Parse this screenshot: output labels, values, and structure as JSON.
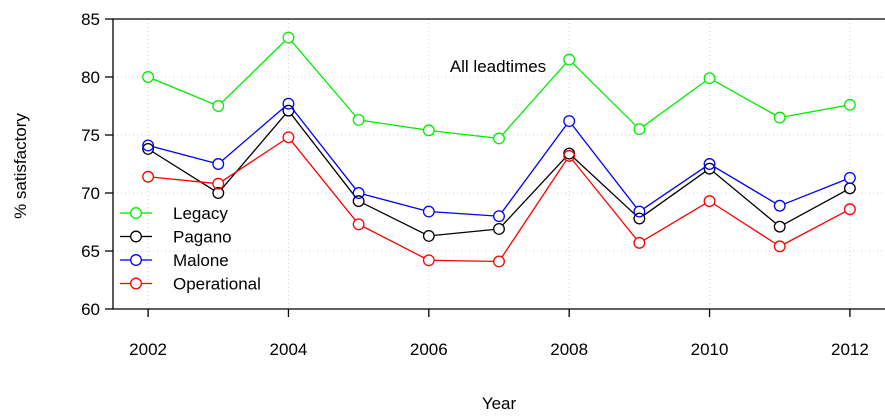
{
  "chart_data": {
    "type": "line",
    "annotation": "All leadtimes",
    "xlabel": "Year",
    "ylabel": "% satisfactory",
    "x": [
      2002,
      2003,
      2004,
      2005,
      2006,
      2007,
      2008,
      2009,
      2010,
      2011,
      2012
    ],
    "xlim": [
      2001.5,
      2012.5
    ],
    "ylim": [
      60,
      85
    ],
    "xticks": [
      2002,
      2004,
      2006,
      2008,
      2010,
      2012
    ],
    "yticks": [
      60,
      65,
      70,
      75,
      80,
      85
    ],
    "grid": true,
    "legend_position": "bottom-left",
    "series": [
      {
        "name": "Legacy",
        "color": "#00ee00",
        "values": [
          80.0,
          77.5,
          83.4,
          76.3,
          75.4,
          74.7,
          81.5,
          75.5,
          79.9,
          76.5,
          77.6
        ]
      },
      {
        "name": "Pagano",
        "color": "#000000",
        "values": [
          73.8,
          70.0,
          77.1,
          69.3,
          66.3,
          66.9,
          73.4,
          67.8,
          72.1,
          67.1,
          70.4
        ]
      },
      {
        "name": "Malone",
        "color": "#0000ff",
        "values": [
          74.1,
          72.5,
          77.7,
          70.0,
          68.4,
          68.0,
          76.2,
          68.4,
          72.5,
          68.9,
          71.3
        ]
      },
      {
        "name": "Operational",
        "color": "#ff0000",
        "values": [
          71.4,
          70.8,
          74.8,
          67.3,
          64.2,
          64.1,
          73.2,
          65.7,
          69.3,
          65.4,
          68.6
        ]
      }
    ]
  }
}
